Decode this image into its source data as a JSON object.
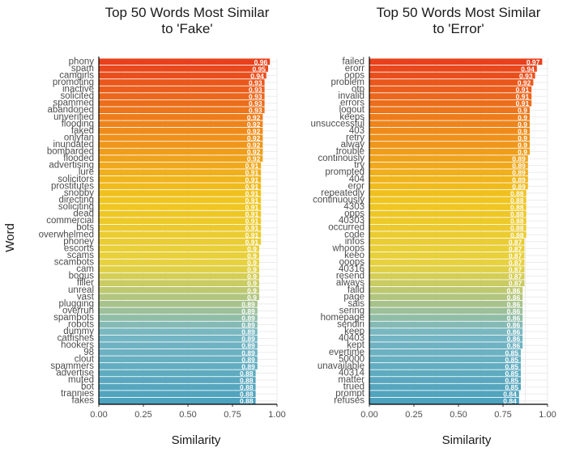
{
  "chart_data": [
    {
      "type": "bar",
      "orientation": "horizontal",
      "title": "Top 50 Words Most Similar to 'Fake'",
      "title_lines": [
        "Top 50 Words Most Similar",
        "to 'Fake'"
      ],
      "xlabel": "Similarity",
      "ylabel": "Word",
      "xlim": [
        0,
        1
      ],
      "xticks": [
        "0.00",
        "0.25",
        "0.50",
        "0.75",
        "1.00"
      ],
      "categories": [
        "phony",
        "spam",
        "camgirls",
        "promoting",
        "inactive",
        "solicited",
        "spammed",
        "abandoned",
        "unverified",
        "flooding",
        "faked",
        "onlyfan",
        "inundated",
        "bombarded",
        "flooded",
        "advertising",
        "lure",
        "solicitors",
        "prostitutes",
        "snobby",
        "directing",
        "soliciting",
        "dead",
        "commercial",
        "bots",
        "overwhelmed",
        "phoney",
        "escorts",
        "scams",
        "scambots",
        "cam",
        "bogus",
        "filler",
        "unreal",
        "vast",
        "plugging",
        "overrun",
        "spambots",
        "robots",
        "dummy",
        "catfishes",
        "hookers",
        "98",
        "clout",
        "spammers",
        "advertise",
        "muted",
        "bot",
        "trannies",
        "fakes"
      ],
      "values": [
        0.96,
        0.95,
        0.94,
        0.93,
        0.93,
        0.93,
        0.93,
        0.93,
        0.92,
        0.92,
        0.92,
        0.92,
        0.92,
        0.92,
        0.92,
        0.91,
        0.91,
        0.91,
        0.91,
        0.91,
        0.91,
        0.91,
        0.91,
        0.91,
        0.91,
        0.91,
        0.91,
        0.9,
        0.9,
        0.9,
        0.9,
        0.9,
        0.9,
        0.9,
        0.9,
        0.89,
        0.89,
        0.89,
        0.89,
        0.89,
        0.89,
        0.89,
        0.89,
        0.89,
        0.89,
        0.88,
        0.88,
        0.88,
        0.88,
        0.88
      ],
      "labels": [
        "0.96",
        "0.95",
        "0.94",
        "0.93",
        "0.93",
        "0.93",
        "0.93",
        "0.93",
        "0.92",
        "0.92",
        "0.92",
        "0.92",
        "0.92",
        "0.92",
        "0.92",
        "0.91",
        "0.91",
        "0.91",
        "0.91",
        "0.91",
        "0.91",
        "0.91",
        "0.91",
        "0.91",
        "0.91",
        "0.91",
        "0.91",
        "0.9",
        "0.9",
        "0.9",
        "0.9",
        "0.9",
        "0.9",
        "0.9",
        "0.9",
        "0.89",
        "0.89",
        "0.89",
        "0.89",
        "0.89",
        "0.89",
        "0.89",
        "0.89",
        "0.89",
        "0.89",
        "0.88",
        "0.88",
        "0.88",
        "0.88",
        "0.88"
      ],
      "grid": true
    },
    {
      "type": "bar",
      "orientation": "horizontal",
      "title": "Top 50 Words Most Similar to 'Error'",
      "title_lines": [
        "Top 50 Words Most Similar",
        "to 'Error'"
      ],
      "xlabel": "Similarity",
      "ylabel": "",
      "xlim": [
        0,
        1
      ],
      "xticks": [
        "0.00",
        "0.25",
        "0.50",
        "0.75",
        "1.00"
      ],
      "categories": [
        "failed",
        "erorr",
        "oops",
        "problem",
        "otp",
        "invalid",
        "errors",
        "logout",
        "keeps",
        "unsuccessful",
        "403",
        "retry",
        "alway",
        "trouble",
        "continously",
        "try",
        "prompted",
        "404",
        "eror",
        "repeatedly",
        "continuously",
        "4303",
        "opps",
        "40303",
        "occurred",
        "code",
        "infos",
        "whoops",
        "keeo",
        "ooops",
        "40316",
        "resend",
        "always",
        "faild",
        "page",
        "sais",
        "sering",
        "homepage",
        "sendiri",
        "keep",
        "40403",
        "kept",
        "evertime",
        "50000",
        "unavailable",
        "40314",
        "matter",
        "trued",
        "prompt",
        "refuses"
      ],
      "values": [
        0.97,
        0.94,
        0.93,
        0.92,
        0.91,
        0.91,
        0.91,
        0.9,
        0.9,
        0.9,
        0.9,
        0.9,
        0.9,
        0.9,
        0.89,
        0.89,
        0.89,
        0.89,
        0.89,
        0.88,
        0.88,
        0.88,
        0.88,
        0.88,
        0.88,
        0.88,
        0.87,
        0.87,
        0.87,
        0.87,
        0.87,
        0.87,
        0.87,
        0.86,
        0.86,
        0.86,
        0.86,
        0.86,
        0.86,
        0.86,
        0.86,
        0.86,
        0.85,
        0.85,
        0.85,
        0.85,
        0.85,
        0.85,
        0.84,
        0.84
      ],
      "labels": [
        "0.97",
        "0.94",
        "0.93",
        "0.92",
        "0.91",
        "0.91",
        "0.91",
        "0.9",
        "0.9",
        "0.9",
        "0.9",
        "0.9",
        "0.9",
        "0.9",
        "0.89",
        "0.89",
        "0.89",
        "0.89",
        "0.89",
        "0.88",
        "0.88",
        "0.88",
        "0.88",
        "0.88",
        "0.88",
        "0.88",
        "0.87",
        "0.87",
        "0.87",
        "0.87",
        "0.87",
        "0.87",
        "0.87",
        "0.86",
        "0.86",
        "0.86",
        "0.86",
        "0.86",
        "0.86",
        "0.86",
        "0.86",
        "0.86",
        "0.85",
        "0.85",
        "0.85",
        "0.85",
        "0.85",
        "0.85",
        "0.84",
        "0.84"
      ],
      "grid": true
    }
  ],
  "colors": {
    "gradient_stops": [
      "#e8401c",
      "#ef8a1a",
      "#f0c41e",
      "#e7d240",
      "#77b7c4",
      "#4da2bd"
    ],
    "background": "#ffffff",
    "label_text": "#ffffff"
  }
}
